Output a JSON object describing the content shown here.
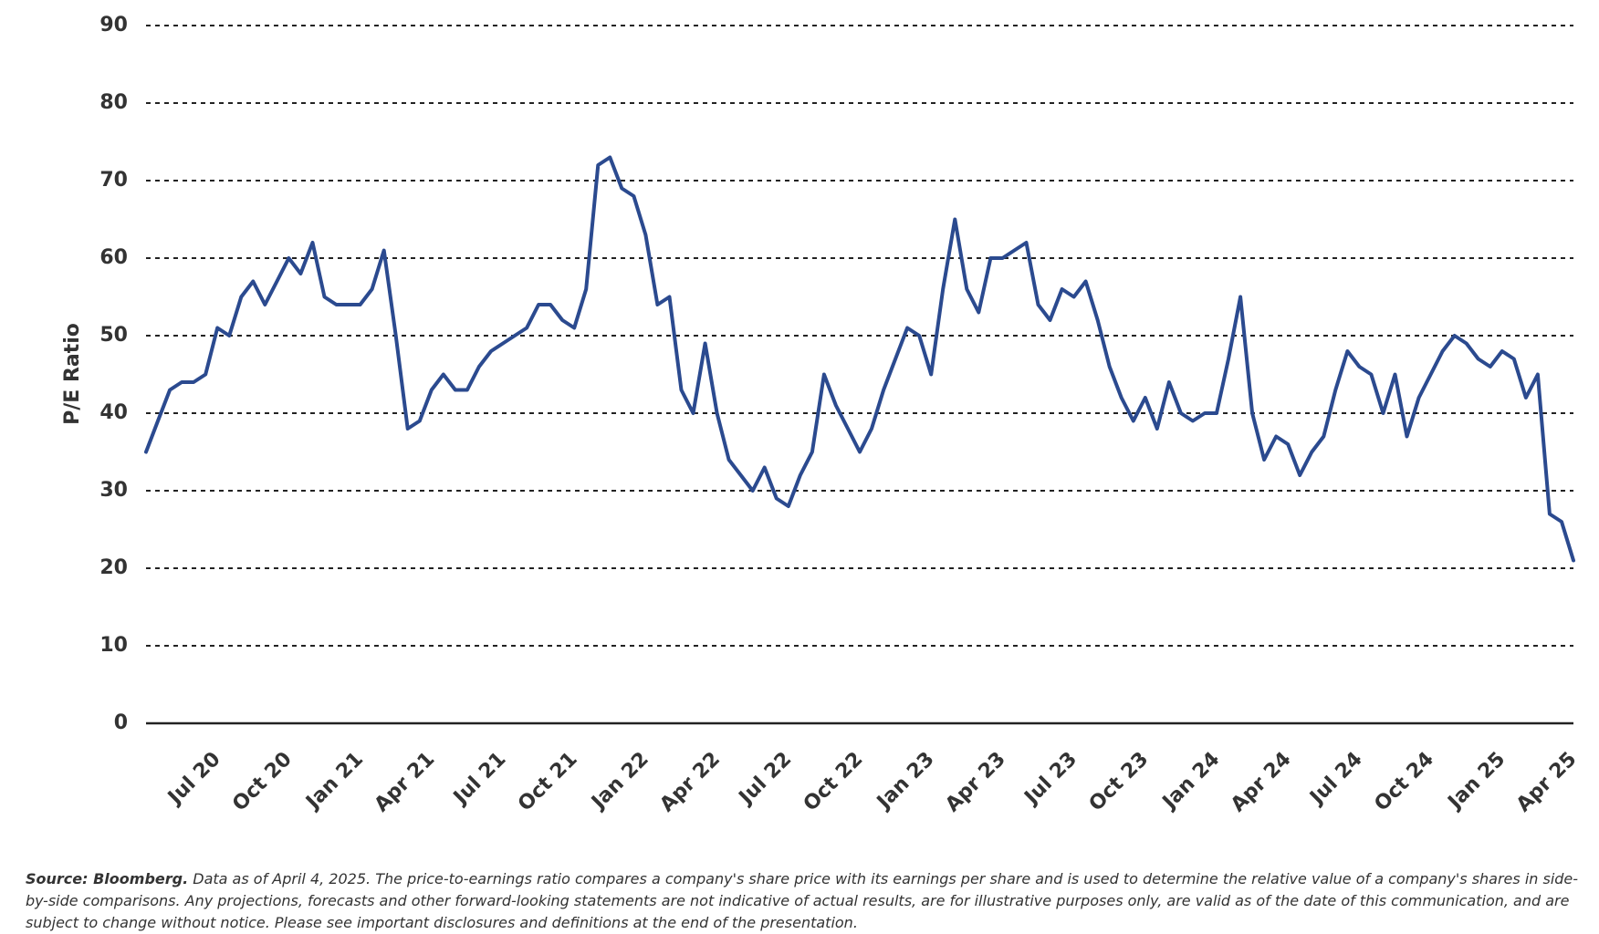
{
  "chart_data": {
    "type": "line",
    "y_label": "P/E Ratio",
    "color": "#2b4a8f",
    "grid": true,
    "ylim": [
      0,
      90
    ],
    "yticks": [
      0,
      10,
      20,
      30,
      40,
      50,
      60,
      70,
      80,
      90
    ],
    "categories": [
      null,
      null,
      null,
      null,
      null,
      null,
      "Jul 20",
      null,
      null,
      null,
      null,
      null,
      "Oct 20",
      null,
      null,
      null,
      null,
      null,
      "Jan 21",
      null,
      null,
      null,
      null,
      null,
      "Apr 21",
      null,
      null,
      null,
      null,
      null,
      "Jul 21",
      null,
      null,
      null,
      null,
      null,
      "Oct 21",
      null,
      null,
      null,
      null,
      null,
      "Jan 22",
      null,
      null,
      null,
      null,
      null,
      "Apr 22",
      null,
      null,
      null,
      null,
      null,
      "Jul 22",
      null,
      null,
      null,
      null,
      null,
      "Oct 22",
      null,
      null,
      null,
      null,
      null,
      "Jan 23",
      null,
      null,
      null,
      null,
      null,
      "Apr 23",
      null,
      null,
      null,
      null,
      null,
      "Jul 23",
      null,
      null,
      null,
      null,
      null,
      "Oct 23",
      null,
      null,
      null,
      null,
      null,
      "Jan 24",
      null,
      null,
      null,
      null,
      null,
      "Apr 24",
      null,
      null,
      null,
      null,
      null,
      "Jul 24",
      null,
      null,
      null,
      null,
      null,
      "Oct 24",
      null,
      null,
      null,
      null,
      null,
      "Jan 25",
      null,
      null,
      null,
      null,
      null,
      "Apr 25"
    ],
    "values": [
      35,
      39,
      43,
      44,
      44,
      45,
      51,
      50,
      55,
      57,
      54,
      57,
      60,
      58,
      62,
      55,
      54,
      54,
      54,
      56,
      61,
      50,
      38,
      39,
      43,
      45,
      43,
      43,
      46,
      48,
      49,
      50,
      51,
      54,
      54,
      52,
      51,
      56,
      72,
      73,
      69,
      68,
      63,
      54,
      55,
      43,
      40,
      49,
      40,
      34,
      32,
      30,
      33,
      29,
      28,
      32,
      35,
      45,
      41,
      38,
      35,
      38,
      43,
      47,
      51,
      50,
      45,
      56,
      65,
      56,
      53,
      60,
      60,
      61,
      62,
      54,
      52,
      56,
      55,
      57,
      52,
      46,
      42,
      39,
      42,
      38,
      44,
      40,
      39,
      40,
      40,
      47,
      55,
      40,
      34,
      37,
      36,
      32,
      35,
      37,
      43,
      48,
      46,
      45,
      40,
      45,
      37,
      42,
      45,
      48,
      50,
      49,
      47,
      46,
      48,
      47,
      42,
      45,
      27,
      26,
      21
    ]
  },
  "footnote": {
    "source": "Source: Bloomberg.",
    "text": "Data as of April 4, 2025. The price-to-earnings ratio compares a company's share price with its earnings per share and is used to determine the relative value of a company's shares in side-by-side comparisons. Any projections, forecasts and other forward-looking statements are not indicative of actual results, are for illustrative purposes only, are valid as of the date of this communication, and are subject to change without notice. Please see important disclosures and definitions at the end of the presentation."
  }
}
